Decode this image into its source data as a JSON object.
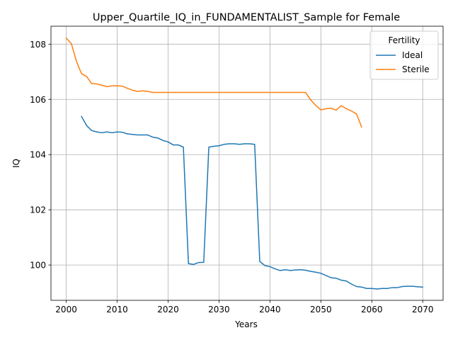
{
  "chart_data": {
    "type": "line",
    "title": "Upper_Quartile_IQ_in_FUNDAMENTALIST_Sample for Female",
    "xlabel": "Years",
    "ylabel": "IQ",
    "xlim": [
      1997,
      2074
    ],
    "ylim": [
      98.72,
      108.65
    ],
    "xticks": [
      2000,
      2010,
      2020,
      2030,
      2040,
      2050,
      2060,
      2070
    ],
    "yticks": [
      100,
      102,
      104,
      106,
      108
    ],
    "grid": true,
    "legend": {
      "title": "Fertility",
      "placement": "top-right"
    },
    "series": [
      {
        "name": "Ideal",
        "color": "#1f77b4",
        "points": [
          [
            2003,
            105.38
          ],
          [
            2004,
            105.05
          ],
          [
            2005,
            104.87
          ],
          [
            2006,
            104.82
          ],
          [
            2007,
            104.79
          ],
          [
            2008,
            104.82
          ],
          [
            2009,
            104.79
          ],
          [
            2010,
            104.82
          ],
          [
            2011,
            104.81
          ],
          [
            2012,
            104.75
          ],
          [
            2013,
            104.73
          ],
          [
            2014,
            104.71
          ],
          [
            2015,
            104.71
          ],
          [
            2016,
            104.71
          ],
          [
            2017,
            104.63
          ],
          [
            2018,
            104.6
          ],
          [
            2019,
            104.51
          ],
          [
            2020,
            104.46
          ],
          [
            2021,
            104.35
          ],
          [
            2022,
            104.35
          ],
          [
            2023,
            104.27
          ],
          [
            2024,
            100.05
          ],
          [
            2025,
            100.02
          ],
          [
            2026,
            100.09
          ],
          [
            2027,
            100.1
          ],
          [
            2028,
            104.27
          ],
          [
            2029,
            104.3
          ],
          [
            2030,
            104.32
          ],
          [
            2031,
            104.37
          ],
          [
            2032,
            104.39
          ],
          [
            2033,
            104.39
          ],
          [
            2034,
            104.37
          ],
          [
            2035,
            104.39
          ],
          [
            2036,
            104.39
          ],
          [
            2037,
            104.37
          ],
          [
            2038,
            100.13
          ],
          [
            2039,
            99.98
          ],
          [
            2040,
            99.94
          ],
          [
            2041,
            99.86
          ],
          [
            2042,
            99.8
          ],
          [
            2043,
            99.83
          ],
          [
            2044,
            99.8
          ],
          [
            2045,
            99.82
          ],
          [
            2046,
            99.83
          ],
          [
            2047,
            99.81
          ],
          [
            2048,
            99.77
          ],
          [
            2049,
            99.74
          ],
          [
            2050,
            99.7
          ],
          [
            2051,
            99.62
          ],
          [
            2052,
            99.54
          ],
          [
            2053,
            99.52
          ],
          [
            2054,
            99.45
          ],
          [
            2055,
            99.42
          ],
          [
            2056,
            99.31
          ],
          [
            2057,
            99.22
          ],
          [
            2058,
            99.2
          ],
          [
            2059,
            99.15
          ],
          [
            2060,
            99.15
          ],
          [
            2061,
            99.13
          ],
          [
            2062,
            99.15
          ],
          [
            2063,
            99.15
          ],
          [
            2064,
            99.18
          ],
          [
            2065,
            99.18
          ],
          [
            2066,
            99.22
          ],
          [
            2067,
            99.23
          ],
          [
            2068,
            99.23
          ],
          [
            2069,
            99.21
          ],
          [
            2070,
            99.2
          ]
        ]
      },
      {
        "name": "Sterile",
        "color": "#ff7f0e",
        "points": [
          [
            2000,
            108.22
          ],
          [
            2001,
            108.02
          ],
          [
            2002,
            107.38
          ],
          [
            2003,
            106.93
          ],
          [
            2004,
            106.83
          ],
          [
            2005,
            106.57
          ],
          [
            2006,
            106.56
          ],
          [
            2007,
            106.51
          ],
          [
            2008,
            106.46
          ],
          [
            2009,
            106.49
          ],
          [
            2010,
            106.49
          ],
          [
            2011,
            106.48
          ],
          [
            2012,
            106.4
          ],
          [
            2013,
            106.33
          ],
          [
            2014,
            106.29
          ],
          [
            2015,
            106.31
          ],
          [
            2016,
            106.29
          ],
          [
            2017,
            106.25
          ],
          [
            2018,
            106.25
          ],
          [
            2019,
            106.25
          ],
          [
            2020,
            106.25
          ],
          [
            2021,
            106.25
          ],
          [
            2022,
            106.25
          ],
          [
            2023,
            106.25
          ],
          [
            2024,
            106.25
          ],
          [
            2025,
            106.25
          ],
          [
            2026,
            106.25
          ],
          [
            2027,
            106.25
          ],
          [
            2028,
            106.25
          ],
          [
            2029,
            106.25
          ],
          [
            2030,
            106.25
          ],
          [
            2031,
            106.25
          ],
          [
            2032,
            106.25
          ],
          [
            2033,
            106.25
          ],
          [
            2034,
            106.25
          ],
          [
            2035,
            106.25
          ],
          [
            2036,
            106.25
          ],
          [
            2037,
            106.25
          ],
          [
            2038,
            106.25
          ],
          [
            2039,
            106.25
          ],
          [
            2040,
            106.25
          ],
          [
            2041,
            106.25
          ],
          [
            2042,
            106.25
          ],
          [
            2043,
            106.25
          ],
          [
            2044,
            106.25
          ],
          [
            2045,
            106.25
          ],
          [
            2046,
            106.25
          ],
          [
            2047,
            106.25
          ],
          [
            2048,
            105.98
          ],
          [
            2049,
            105.78
          ],
          [
            2050,
            105.62
          ],
          [
            2051,
            105.66
          ],
          [
            2052,
            105.68
          ],
          [
            2053,
            105.61
          ],
          [
            2054,
            105.77
          ],
          [
            2055,
            105.66
          ],
          [
            2056,
            105.58
          ],
          [
            2057,
            105.47
          ],
          [
            2058,
            105.0
          ]
        ]
      }
    ]
  }
}
